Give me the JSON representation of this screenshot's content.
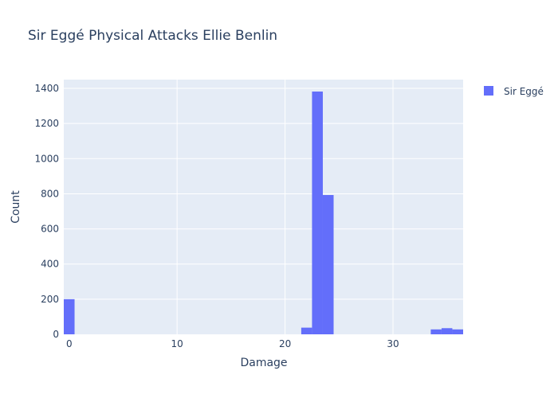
{
  "chart_data": {
    "type": "bar",
    "title": "Sir Eggé Physical Attacks Ellie Benlin",
    "xlabel": "Damage",
    "ylabel": "Count",
    "xlim": [
      -0.5,
      36.5
    ],
    "ylim": [
      0,
      1450
    ],
    "x_ticks": [
      0,
      10,
      20,
      30
    ],
    "y_ticks": [
      0,
      200,
      400,
      600,
      800,
      1000,
      1200,
      1400
    ],
    "grid": true,
    "legend_position": "top-right",
    "series": [
      {
        "name": "Sir Eggé",
        "color": "#636efa",
        "bin_width": 1,
        "bins": [
          {
            "x": 0,
            "count": 200
          },
          {
            "x": 22,
            "count": 38
          },
          {
            "x": 23,
            "count": 1382
          },
          {
            "x": 24,
            "count": 793
          },
          {
            "x": 34,
            "count": 28
          },
          {
            "x": 35,
            "count": 35
          },
          {
            "x": 36,
            "count": 28
          }
        ]
      }
    ]
  }
}
